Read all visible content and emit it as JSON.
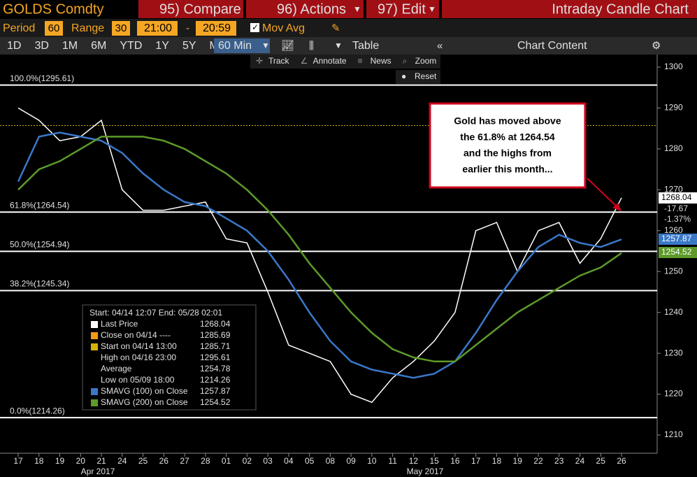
{
  "ui": {
    "security": "GOLDS Comdty",
    "menu": [
      "95) Compare",
      "96) Actions",
      "97) Edit"
    ],
    "page_title": "Intraday Candle Chart",
    "period_label": "Period",
    "period": "60",
    "range_label": "Range",
    "range": "30",
    "time_from": "21:00",
    "dash": "-",
    "time_to": "20:59",
    "mov_avg": "Mov Avg",
    "buttons": [
      "1D",
      "3D",
      "1M",
      "6M",
      "YTD",
      "1Y",
      "5Y",
      "Max"
    ],
    "interval": "60 Min",
    "table": "Table",
    "chart_content": "Chart Content",
    "tools": [
      "Track",
      "Annotate",
      "News",
      "Zoom"
    ],
    "reset": "Reset",
    "tags": [
      "1268.04",
      "-17.67",
      "-1.37%",
      "1257.87",
      "1254.52"
    ]
  },
  "chart_data": {
    "type": "line",
    "categories": [
      "17",
      "18",
      "19",
      "20",
      "21",
      "24",
      "25",
      "26",
      "27",
      "28",
      "01",
      "02",
      "03",
      "04",
      "05",
      "08",
      "09",
      "10",
      "11",
      "12",
      "15",
      "16",
      "17",
      "18",
      "19",
      "22",
      "23",
      "24",
      "25",
      "26"
    ],
    "months": [
      "Apr 2017",
      "May 2017"
    ],
    "series": [
      {
        "name": "Last Price",
        "color": "#ffffff",
        "values": [
          1290,
          1287,
          1282,
          1283,
          1287,
          1270,
          1265,
          1265,
          1266,
          1267,
          1258,
          1257,
          1245,
          1232,
          1230,
          1228,
          1220,
          1218,
          1224,
          1228,
          1233,
          1240,
          1260,
          1262,
          1250,
          1260,
          1262,
          1252,
          1258,
          1268.04
        ]
      },
      {
        "name": "SMAVG (100) on Close",
        "color": "#3a78c8",
        "values": [
          1272,
          1283,
          1284,
          1283,
          1282,
          1279,
          1274,
          1270,
          1267,
          1266,
          1263,
          1260,
          1255,
          1248,
          1240,
          1233,
          1228,
          1226,
          1225,
          1224,
          1225,
          1228,
          1235,
          1243,
          1250,
          1256,
          1259,
          1257,
          1256,
          1257.87
        ]
      },
      {
        "name": "SMAVG (200) on Close",
        "color": "#5d9a2a",
        "values": [
          1270,
          1275,
          1277,
          1280,
          1283,
          1283,
          1283,
          1282,
          1280,
          1277,
          1274,
          1270,
          1265,
          1259,
          1252,
          1246,
          1240,
          1235,
          1231,
          1229,
          1228,
          1228,
          1232,
          1236,
          1240,
          1243,
          1246,
          1249,
          1251,
          1254.52
        ]
      }
    ],
    "levels": [
      {
        "label": "100.0%(1295.61)",
        "value": 1295.61
      },
      {
        "label": "61.8%(1264.54)",
        "value": 1264.54
      },
      {
        "label": "50.0%(1254.94)",
        "value": 1254.94
      },
      {
        "label": "38.2%(1245.34)",
        "value": 1245.34
      },
      {
        "label": "0.0%(1214.26)",
        "value": 1214.26
      }
    ],
    "start_level": 1285.71,
    "ylim": [
      1205,
      1305
    ],
    "yticks": [
      1210,
      1220,
      1230,
      1240,
      1250,
      1260,
      1270,
      1280,
      1290,
      1300
    ],
    "annotation": [
      "Gold has moved above",
      "the 61.8% at 1264.54",
      "and the highs from",
      "earlier this month..."
    ],
    "legend": {
      "header": "Start: 04/14 12:07 End: 05/28 02:01",
      "rows": [
        {
          "label": "Last Price",
          "value": "1268.04",
          "color": "#ffffff"
        },
        {
          "label": "Close on 04/14 ----",
          "value": "1285.69",
          "color": "#f39c12"
        },
        {
          "label": "Start on 04/14 13:00",
          "value": "1285.71",
          "color": "#d4b106"
        },
        {
          "label": "High on 04/16 23:00",
          "value": "1295.61",
          "color": "#000000"
        },
        {
          "label": "Average",
          "value": "1254.78",
          "color": "#000000"
        },
        {
          "label": "Low on 05/09 18:00",
          "value": "1214.26",
          "color": "#000000"
        },
        {
          "label": "SMAVG (100) on Close",
          "value": "1257.87",
          "color": "#3a78c8"
        },
        {
          "label": "SMAVG (200) on Close",
          "value": "1254.52",
          "color": "#5d9a2a"
        }
      ]
    }
  }
}
